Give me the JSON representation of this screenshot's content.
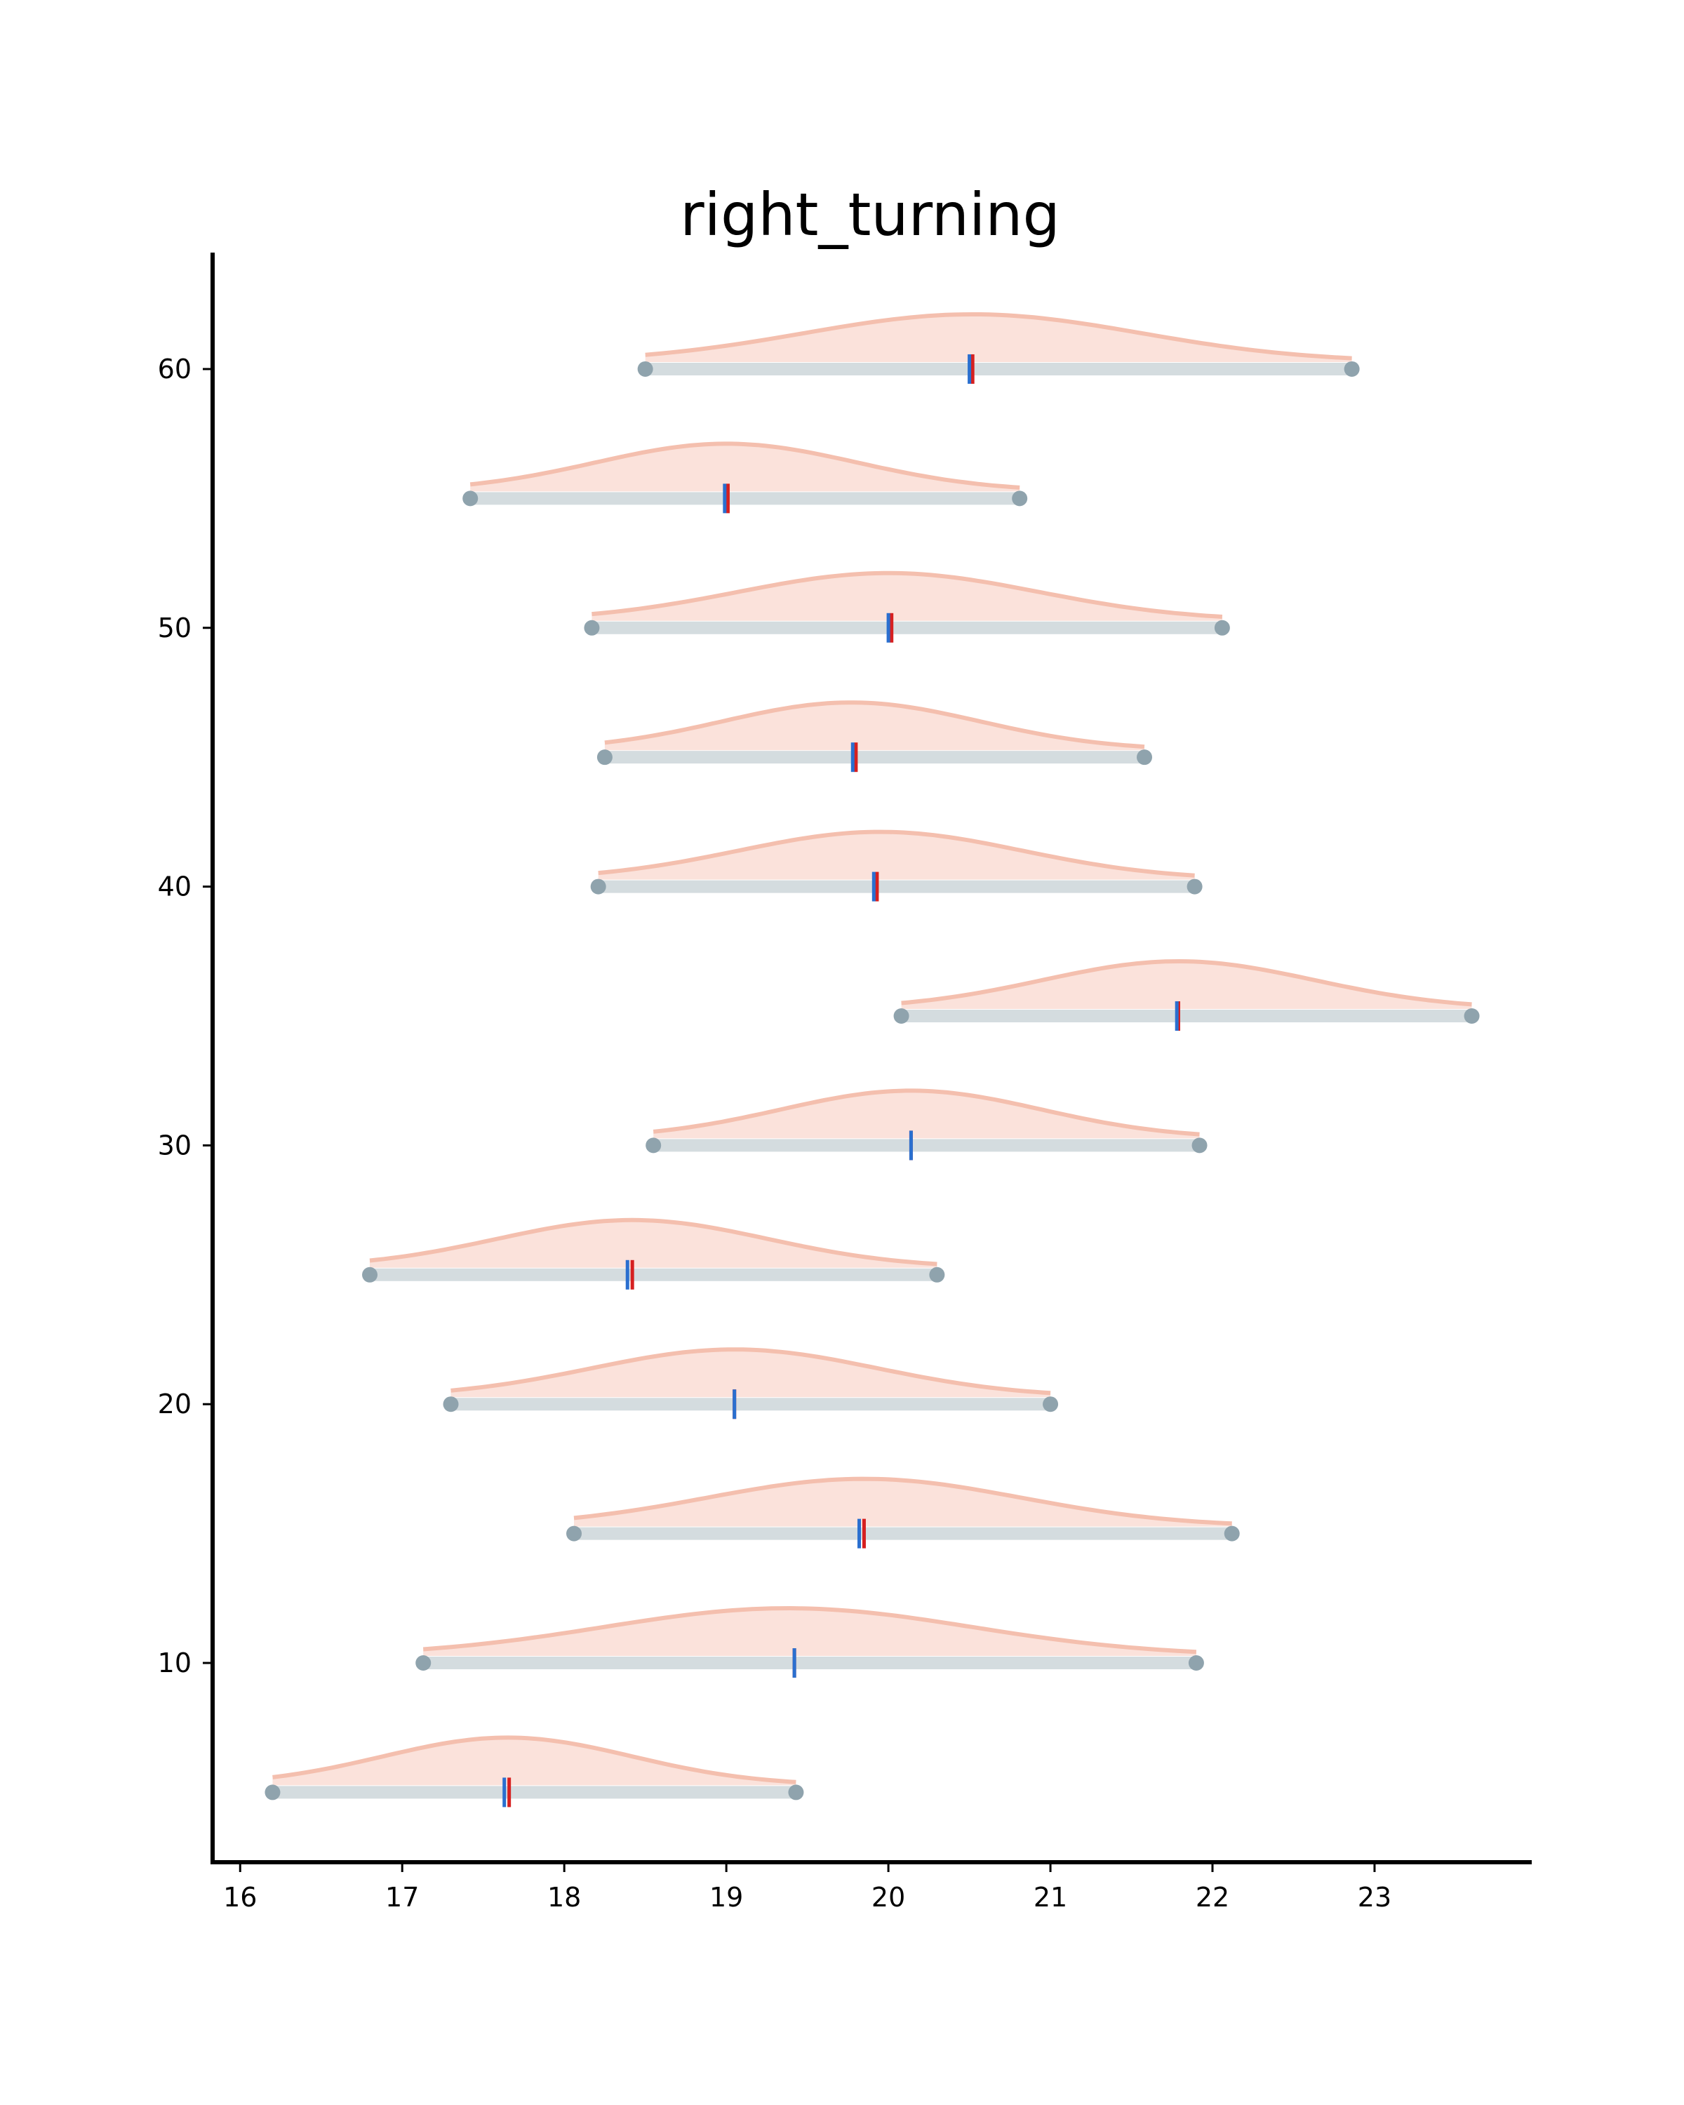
{
  "chart_data": {
    "type": "ridge-interval",
    "title": "right_turning",
    "xlabel": "",
    "ylabel": "",
    "xlim": [
      15.83,
      23.97
    ],
    "ylim": [
      2.3,
      64.5
    ],
    "x_ticks": [
      16,
      17,
      18,
      19,
      20,
      21,
      22,
      23
    ],
    "y_ticks": [
      10,
      20,
      30,
      40,
      50,
      60
    ],
    "grid": false,
    "legend": "none",
    "colors": {
      "density_fill": "#f9d8cf",
      "density_line": "#f4bfae",
      "interval_bar": "#d4dcdf",
      "interval_endpoint": "#8fa3ad",
      "marker_blue": "#2a6fcf",
      "marker_red": "#d62020",
      "axis": "#000000"
    },
    "rows": [
      {
        "y": 5,
        "low": 16.2,
        "high": 19.43,
        "mean": 17.63,
        "median": 17.66,
        "peak": 17.65
      },
      {
        "y": 10,
        "low": 17.13,
        "high": 21.9,
        "mean": 19.42,
        "median": 19.42,
        "peak": 19.38
      },
      {
        "y": 15,
        "low": 18.06,
        "high": 22.12,
        "mean": 19.82,
        "median": 19.85,
        "peak": 19.85
      },
      {
        "y": 20,
        "low": 17.3,
        "high": 21.0,
        "mean": 19.05,
        "median": 19.05,
        "peak": 19.05
      },
      {
        "y": 25,
        "low": 16.8,
        "high": 20.3,
        "mean": 18.39,
        "median": 18.42,
        "peak": 18.42
      },
      {
        "y": 30,
        "low": 18.55,
        "high": 21.92,
        "mean": 20.14,
        "median": 20.14,
        "peak": 20.14
      },
      {
        "y": 35,
        "low": 20.08,
        "high": 23.6,
        "mean": 21.78,
        "median": 21.79,
        "peak": 21.79
      },
      {
        "y": 40,
        "low": 18.21,
        "high": 21.89,
        "mean": 19.91,
        "median": 19.93,
        "peak": 19.95
      },
      {
        "y": 45,
        "low": 18.25,
        "high": 21.58,
        "mean": 19.78,
        "median": 19.8,
        "peak": 19.77
      },
      {
        "y": 50,
        "low": 18.17,
        "high": 22.06,
        "mean": 20.0,
        "median": 20.02,
        "peak": 20.0
      },
      {
        "y": 55,
        "low": 17.42,
        "high": 20.81,
        "mean": 18.99,
        "median": 19.01,
        "peak": 19.0
      },
      {
        "y": 60,
        "low": 18.5,
        "high": 22.86,
        "mean": 20.5,
        "median": 20.52,
        "peak": 20.52
      }
    ]
  }
}
